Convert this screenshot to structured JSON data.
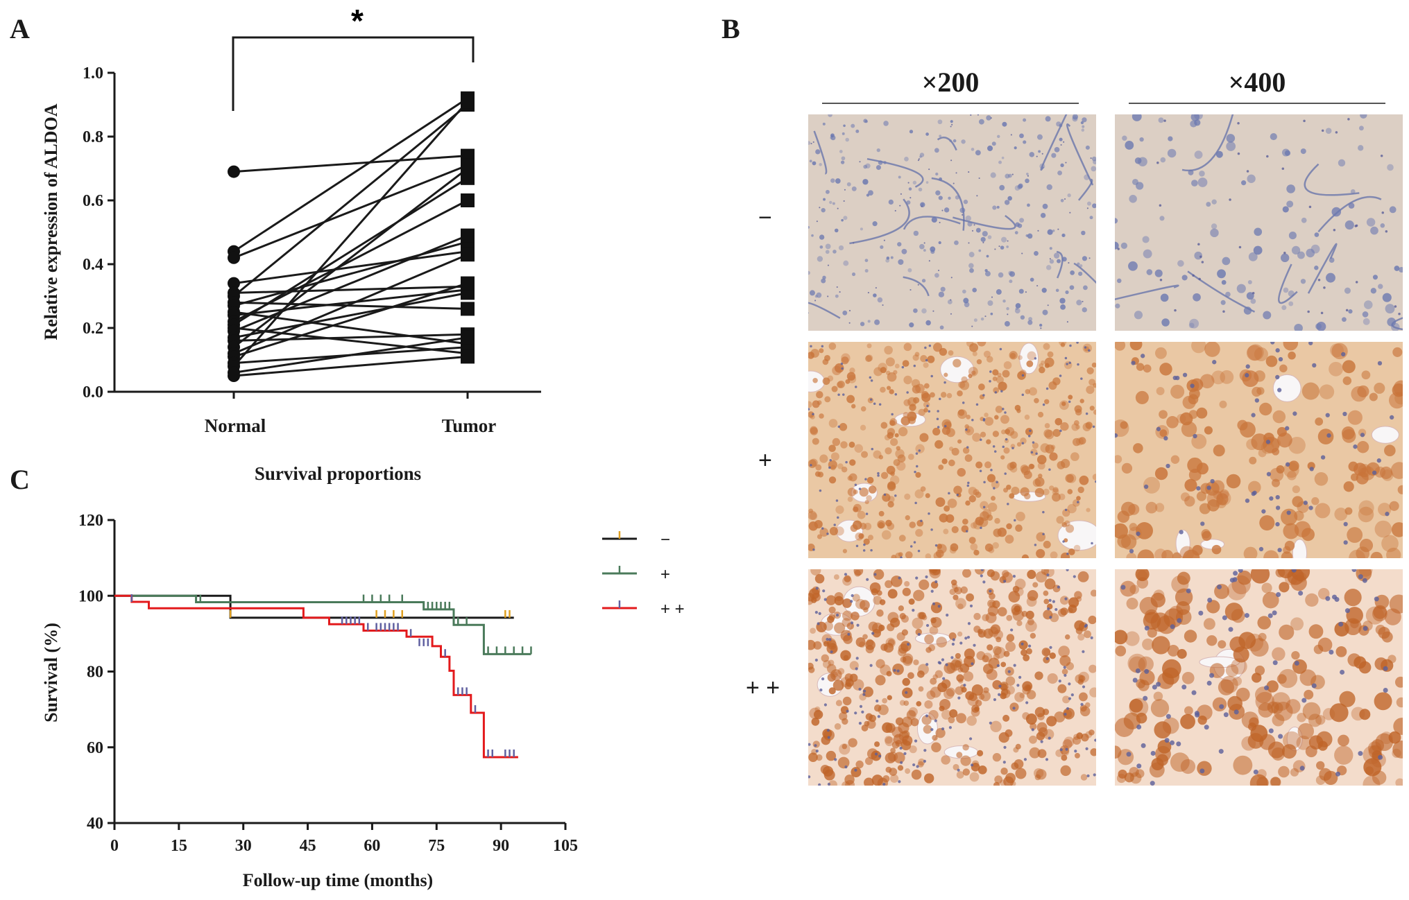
{
  "figure": {
    "panels": {
      "a": "A",
      "b": "B",
      "c": "C"
    }
  },
  "panel_a": {
    "significance": "*"
  },
  "panel_b": {
    "magnifications": [
      "×200",
      "×400"
    ],
    "rows": [
      "−",
      "+",
      "+ +"
    ],
    "stain_colors": {
      "negative_bg": "#dccfc4",
      "negative_nuclei": "#6b78b0",
      "positive_bg": "#eac8a4",
      "positive_cells": "#c8743a",
      "strong_bg": "#f3dccb",
      "strong_cells": "#bf6428"
    }
  },
  "chart_data": [
    {
      "type": "line",
      "panel": "A",
      "title": "",
      "xlabel": "",
      "ylabel": "Relative expression of ALDOA",
      "categories": [
        "Normal",
        "Tumor"
      ],
      "ylim": [
        0.0,
        1.0
      ],
      "yticks": [
        "0.0",
        "0.2",
        "0.4",
        "0.6",
        "0.8",
        "1.0"
      ],
      "grid": false,
      "paired": [
        [
          0.69,
          0.74
        ],
        [
          0.44,
          0.92
        ],
        [
          0.42,
          0.71
        ],
        [
          0.34,
          0.44
        ],
        [
          0.31,
          0.33
        ],
        [
          0.3,
          0.9
        ],
        [
          0.28,
          0.26
        ],
        [
          0.27,
          0.47
        ],
        [
          0.25,
          0.15
        ],
        [
          0.24,
          0.32
        ],
        [
          0.22,
          0.6
        ],
        [
          0.21,
          0.67
        ],
        [
          0.2,
          0.12
        ],
        [
          0.19,
          0.49
        ],
        [
          0.17,
          0.31
        ],
        [
          0.16,
          0.18
        ],
        [
          0.14,
          0.7
        ],
        [
          0.12,
          0.43
        ],
        [
          0.11,
          0.34
        ],
        [
          0.09,
          0.14
        ],
        [
          0.08,
          0.91
        ],
        [
          0.06,
          0.17
        ],
        [
          0.05,
          0.11
        ]
      ]
    },
    {
      "type": "line",
      "panel": "C",
      "title": "Survival proportions",
      "xlabel": "Follow-up time (months)",
      "ylabel": "Survival (%)",
      "xlim": [
        0,
        105
      ],
      "ylim": [
        40,
        120
      ],
      "xticks": [
        "0",
        "15",
        "30",
        "45",
        "60",
        "75",
        "90",
        "105"
      ],
      "yticks": [
        "40",
        "60",
        "80",
        "100",
        "120"
      ],
      "grid": false,
      "legend_position": "right",
      "series": [
        {
          "name": "−",
          "color": "#1a1a1a",
          "censor_color": "#e0a020",
          "steps": [
            [
              0,
              100
            ],
            [
              27,
              100
            ],
            [
              27,
              94.2
            ],
            [
              93,
              94.2
            ]
          ],
          "censored": [
            [
              27,
              94.2
            ],
            [
              44,
              94.2
            ],
            [
              61,
              94.2
            ],
            [
              63,
              94.2
            ],
            [
              65,
              94.2
            ],
            [
              67,
              94.2
            ],
            [
              79,
              94.2
            ],
            [
              91,
              94.2
            ],
            [
              92,
              94.2
            ]
          ]
        },
        {
          "name": "+",
          "color": "#4a7a5a",
          "censor_color": "#4a7a5a",
          "steps": [
            [
              0,
              100
            ],
            [
              19,
              100
            ],
            [
              19,
              98.3
            ],
            [
              72,
              98.3
            ],
            [
              72,
              96.4
            ],
            [
              79,
              96.4
            ],
            [
              79,
              92.3
            ],
            [
              86,
              92.3
            ],
            [
              86,
              84.6
            ],
            [
              97,
              84.6
            ]
          ],
          "censored": [
            [
              19,
              98.3
            ],
            [
              20,
              98.3
            ],
            [
              58,
              98.3
            ],
            [
              60,
              98.3
            ],
            [
              62,
              98.3
            ],
            [
              64,
              98.3
            ],
            [
              67,
              98.3
            ],
            [
              73,
              96.4
            ],
            [
              74,
              96.4
            ],
            [
              75,
              96.4
            ],
            [
              76,
              96.4
            ],
            [
              77,
              96.4
            ],
            [
              78,
              96.4
            ],
            [
              80,
              92.3
            ],
            [
              82,
              92.3
            ],
            [
              87,
              84.6
            ],
            [
              89,
              84.6
            ],
            [
              91,
              84.6
            ],
            [
              93,
              84.6
            ],
            [
              95,
              84.6
            ],
            [
              97,
              84.6
            ]
          ]
        },
        {
          "name": "+ +",
          "color": "#e31a1c",
          "censor_color": "#6060a0",
          "steps": [
            [
              0,
              100
            ],
            [
              4,
              100
            ],
            [
              4,
              98.4
            ],
            [
              8,
              98.4
            ],
            [
              8,
              96.7
            ],
            [
              44,
              96.7
            ],
            [
              44,
              94.2
            ],
            [
              50,
              94.2
            ],
            [
              50,
              92.5
            ],
            [
              58,
              92.5
            ],
            [
              58,
              90.8
            ],
            [
              68,
              90.8
            ],
            [
              68,
              89.2
            ],
            [
              74,
              89.2
            ],
            [
              74,
              86.7
            ],
            [
              76,
              86.7
            ],
            [
              76,
              83.9
            ],
            [
              78,
              83.9
            ],
            [
              78,
              80.2
            ],
            [
              79,
              80.2
            ],
            [
              79,
              73.8
            ],
            [
              83,
              73.8
            ],
            [
              83,
              69.1
            ],
            [
              86,
              69.1
            ],
            [
              86,
              57.4
            ],
            [
              94,
              57.4
            ]
          ],
          "censored": [
            [
              4,
              98.4
            ],
            [
              53,
              92.5
            ],
            [
              54,
              92.5
            ],
            [
              55,
              92.5
            ],
            [
              56,
              92.5
            ],
            [
              57,
              92.5
            ],
            [
              59,
              90.8
            ],
            [
              61,
              90.8
            ],
            [
              62,
              90.8
            ],
            [
              63,
              90.8
            ],
            [
              64,
              90.8
            ],
            [
              65,
              90.8
            ],
            [
              66,
              90.8
            ],
            [
              69,
              89.2
            ],
            [
              71,
              86.7
            ],
            [
              72,
              86.7
            ],
            [
              73,
              86.7
            ],
            [
              77,
              83.9
            ],
            [
              80,
              73.8
            ],
            [
              81,
              73.8
            ],
            [
              82,
              73.8
            ],
            [
              84,
              69.1
            ],
            [
              87,
              57.4
            ],
            [
              88,
              57.4
            ],
            [
              91,
              57.4
            ],
            [
              92,
              57.4
            ],
            [
              93,
              57.4
            ]
          ]
        }
      ]
    }
  ]
}
